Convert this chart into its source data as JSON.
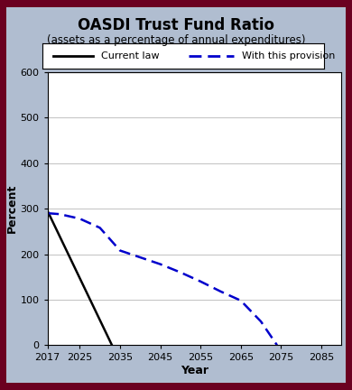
{
  "title_line1": "OASDI Trust Fund Ratio",
  "title_line2": "(assets as a percentage of annual expenditures)",
  "xlabel": "Year",
  "ylabel": "Percent",
  "background_color": "#b0bdd0",
  "plot_background_color": "#ffffff",
  "xlim": [
    2017,
    2090
  ],
  "ylim": [
    0,
    600
  ],
  "xticks": [
    2017,
    2025,
    2035,
    2045,
    2055,
    2065,
    2075,
    2085
  ],
  "yticks": [
    0,
    100,
    200,
    300,
    400,
    500,
    600
  ],
  "current_law": {
    "x": [
      2017,
      2033
    ],
    "y": [
      295,
      0
    ],
    "color": "#000000",
    "linewidth": 1.8,
    "label": "Current law"
  },
  "provision": {
    "x": [
      2017,
      2020,
      2025,
      2030,
      2035,
      2040,
      2045,
      2050,
      2055,
      2060,
      2065,
      2070,
      2074
    ],
    "y": [
      290,
      288,
      278,
      258,
      208,
      193,
      178,
      160,
      140,
      118,
      98,
      52,
      0
    ],
    "color": "#0000cc",
    "linewidth": 1.8,
    "label": "With this provision"
  },
  "border_color": "#6b0020",
  "border_linewidth": 4
}
